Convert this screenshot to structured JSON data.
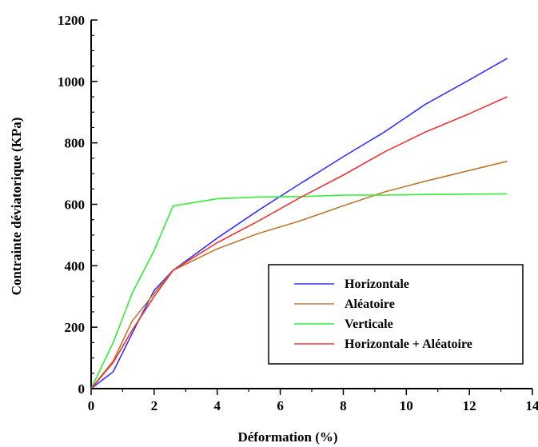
{
  "chart_data": {
    "type": "line",
    "xlabel": "Déformation (%)",
    "ylabel": "Contrainte déviatorique (KPa)",
    "xlim": [
      0,
      14
    ],
    "ylim": [
      0,
      1200
    ],
    "xticks": [
      "0",
      "2",
      "4",
      "6",
      "8",
      "10",
      "12",
      "14"
    ],
    "yticks": [
      "0",
      "200",
      "400",
      "600",
      "800",
      "1000",
      "1200"
    ],
    "grid": false,
    "legend_position": "bottom-right",
    "series": [
      {
        "name": "Horizontale",
        "color": "#3333ff",
        "x": [
          0,
          0.7,
          1.4,
          2.0,
          2.6,
          4.0,
          5.3,
          6.6,
          8.0,
          9.3,
          10.6,
          12.0,
          13.2
        ],
        "y": [
          0,
          55,
          200,
          320,
          385,
          490,
          580,
          665,
          755,
          835,
          925,
          1005,
          1075
        ]
      },
      {
        "name": "Aléatoire",
        "color": "#c07830",
        "x": [
          0,
          0.7,
          1.3,
          2.0,
          2.6,
          4.0,
          5.3,
          6.6,
          8.0,
          9.3,
          10.6,
          12.0,
          13.2
        ],
        "y": [
          0,
          90,
          220,
          310,
          385,
          455,
          505,
          545,
          595,
          640,
          675,
          710,
          740
        ]
      },
      {
        "name": "Verticale",
        "color": "#33ee33",
        "x": [
          0,
          0.7,
          1.3,
          2.0,
          2.6,
          4.0,
          5.3,
          6.6,
          8.0,
          9.3,
          10.6,
          12.0,
          13.2
        ],
        "y": [
          0,
          150,
          310,
          450,
          595,
          618,
          624,
          625,
          630,
          630,
          632,
          633,
          634
        ]
      },
      {
        "name": "Horizontale + Aléatoire",
        "color": "#ee3333",
        "x": [
          0,
          0.7,
          1.3,
          2.0,
          2.6,
          4.0,
          5.3,
          6.6,
          8.0,
          9.3,
          10.6,
          12.0,
          13.2
        ],
        "y": [
          0,
          85,
          190,
          300,
          385,
          475,
          545,
          620,
          695,
          770,
          835,
          895,
          950
        ]
      }
    ]
  }
}
